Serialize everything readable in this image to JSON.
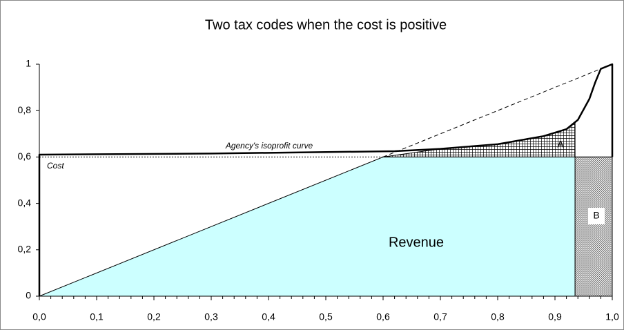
{
  "chart_data": {
    "type": "line",
    "title": "Two tax codes when the cost is positive",
    "xlim": [
      0,
      1
    ],
    "ylim": [
      0,
      1
    ],
    "xticks": [
      {
        "value": 0,
        "label": "0,0"
      },
      {
        "value": 0.1,
        "label": "0,1"
      },
      {
        "value": 0.2,
        "label": "0,2"
      },
      {
        "value": 0.3,
        "label": "0,3"
      },
      {
        "value": 0.4,
        "label": "0,4"
      },
      {
        "value": 0.5,
        "label": "0,5"
      },
      {
        "value": 0.6,
        "label": "0,6"
      },
      {
        "value": 0.7,
        "label": "0,7"
      },
      {
        "value": 0.8,
        "label": "0,8"
      },
      {
        "value": 0.9,
        "label": "0,9"
      },
      {
        "value": 1,
        "label": "1,0"
      }
    ],
    "xminorticks": [
      0.02,
      0.04,
      0.06,
      0.08,
      0.12,
      0.14,
      0.16,
      0.18,
      0.22,
      0.24,
      0.26,
      0.28,
      0.32,
      0.34,
      0.36,
      0.38,
      0.42,
      0.44,
      0.46,
      0.48,
      0.52,
      0.54,
      0.56,
      0.58,
      0.62,
      0.64,
      0.66,
      0.68,
      0.72,
      0.74,
      0.76,
      0.78,
      0.82,
      0.84,
      0.86,
      0.88,
      0.92,
      0.94,
      0.96,
      0.98
    ],
    "yticks": [
      0,
      {
        "value": 0.2,
        "label": "0,2"
      },
      {
        "value": 0.4,
        "label": "0,4"
      },
      {
        "value": 0.6,
        "label": "0,6"
      },
      {
        "value": 0.8,
        "label": "0,8"
      },
      1
    ],
    "grid": false,
    "series": [
      {
        "name": "Revenue",
        "style": "area",
        "color": "#ccffff",
        "x": [
          0,
          0.6,
          0.935,
          0.935
        ],
        "values": [
          0,
          0.6,
          0.6,
          0
        ]
      },
      {
        "name": "A",
        "style": "area",
        "color": "url(#hatch-grid)",
        "x": [
          0.6,
          0.7,
          0.8,
          0.88,
          0.92,
          0.935,
          0.935
        ],
        "values": [
          0.6,
          0.635,
          0.655,
          0.69,
          0.72,
          0.75,
          0.6
        ]
      },
      {
        "name": "B",
        "style": "area",
        "color": "url(#hatch-cross)",
        "x": [
          0.935,
          1,
          1,
          0.935
        ],
        "values": [
          0,
          0,
          0.6,
          0.6
        ]
      },
      {
        "style": "line",
        "color": "#000000",
        "dash": "6,4",
        "x": [
          0.6,
          1
        ],
        "values": [
          0.6,
          1
        ]
      },
      {
        "style": "line",
        "color": "#000000",
        "x": [
          0.6,
          1
        ],
        "values": [
          0.6,
          0.6
        ]
      },
      {
        "name": "Cost",
        "style": "line",
        "color": "#000000",
        "dash": "2,2",
        "x": [
          0,
          0.6
        ],
        "values": [
          0.6,
          0.6
        ]
      },
      {
        "name": "Agency's isoprofit curve",
        "style": "thick",
        "color": "#000000",
        "x": [
          0,
          0,
          0.3,
          0.62,
          0.7,
          0.8,
          0.88,
          0.92,
          0.94,
          0.96,
          0.97,
          0.98,
          1,
          1
        ],
        "values": [
          0,
          0.61,
          0.615,
          0.625,
          0.635,
          0.655,
          0.69,
          0.72,
          0.76,
          0.85,
          0.92,
          0.98,
          1,
          0.6
        ]
      }
    ]
  }
}
